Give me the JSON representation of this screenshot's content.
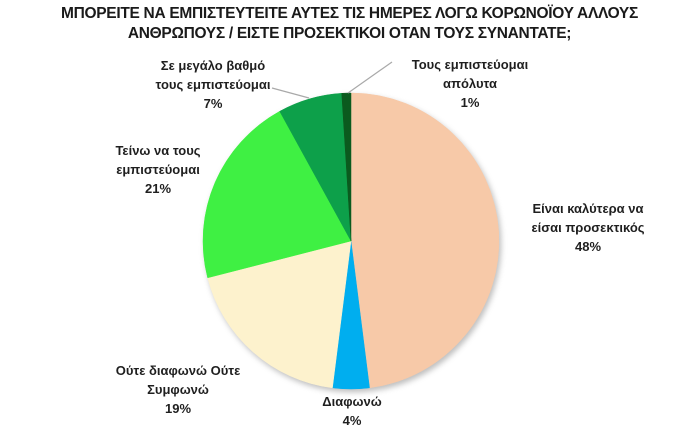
{
  "title": {
    "line1": "ΜΠΟΡΕΙΤΕ ΝΑ ΕΜΠΙΣΤΕΥΤΕΙΤΕ ΑΥΤΕΣ ΤΙΣ ΗΜΕΡΕΣ ΛΟΓΩ ΚΟΡΩΝΟΪΟΥ ΑΛΛΟΥΣ",
    "line2": "ΑΝΘΡΩΠΟΥΣ / ΕΙΣΤΕ ΠΡΟΣΕΚΤΙΚΟΙ ΟΤΑΝ ΤΟΥΣ ΣΥΝΑΝΤΑΤΕ;"
  },
  "chart_data": {
    "type": "pie",
    "title": "ΜΠΟΡΕΙΤΕ ΝΑ ΕΜΠΙΣΤΕΥΤΕΙΤΕ ΑΥΤΕΣ ΤΙΣ ΗΜΕΡΕΣ ΛΟΓΩ ΚΟΡΩΝΟΪΟΥ ΑΛΛΟΥΣ ΑΝΘΡΩΠΟΥΣ / ΕΙΣΤΕ ΠΡΟΣΕΚΤΙΚΟΙ ΟΤΑΝ ΤΟΥΣ ΣΥΝΑΝΤΑΤΕ;",
    "start_angle_deg": 0,
    "direction": "clockwise",
    "legend": "none",
    "total": 100,
    "categories": [
      "Είναι καλύτερα να είσαι προσεκτικός",
      "Διαφωνώ",
      "Ούτε διαφωνώ Ούτε Συμφωνώ",
      "Τείνω να τους εμπιστεύομαι",
      "Σε μεγάλο βαθμό τους εμπιστεύομαι",
      "Τους εμπιστεύομαι απόλυτα"
    ],
    "values": [
      48,
      4,
      19,
      21,
      7,
      1
    ],
    "slices": [
      {
        "category": "Είναι καλύτερα να είσαι προσεκτικός",
        "value": 48,
        "pct_label": "48%",
        "color": "#F7C9A8",
        "label_lines": [
          "Είναι καλύτερα να",
          "είσαι προσεκτικός",
          "48%"
        ]
      },
      {
        "category": "Διαφωνώ",
        "value": 4,
        "pct_label": "4%",
        "color": "#00AEEF",
        "label_lines": [
          "Διαφωνώ",
          "4%"
        ]
      },
      {
        "category": "Ούτε διαφωνώ Ούτε Συμφωνώ",
        "value": 19,
        "pct_label": "19%",
        "color": "#FDF2CD",
        "label_lines": [
          "Ούτε διαφωνώ Ούτε",
          "Συμφωνώ",
          "19%"
        ]
      },
      {
        "category": "Τείνω να τους εμπιστεύομαι",
        "value": 21,
        "pct_label": "21%",
        "color": "#3FF043",
        "label_lines": [
          "Τείνω να τους",
          "εμπιστεύομαι",
          "21%"
        ]
      },
      {
        "category": "Σε μεγάλο βαθμό τους εμπιστεύομαι",
        "value": 7,
        "pct_label": "7%",
        "color": "#0DA04A",
        "label_lines": [
          "Σε μεγάλο βαθμό",
          "τους εμπιστεύομαι",
          "7%"
        ]
      },
      {
        "category": "Τους εμπιστεύομαι απόλυτα",
        "value": 1,
        "pct_label": "1%",
        "color": "#0B5A1E",
        "label_lines": [
          "Τους εμπιστεύομαι",
          "απόλυτα",
          "1%"
        ]
      }
    ],
    "label_text_color": "#1F1F1F",
    "leader_line_color": "#A9A9A9",
    "background_color": "#FFFFFF"
  }
}
